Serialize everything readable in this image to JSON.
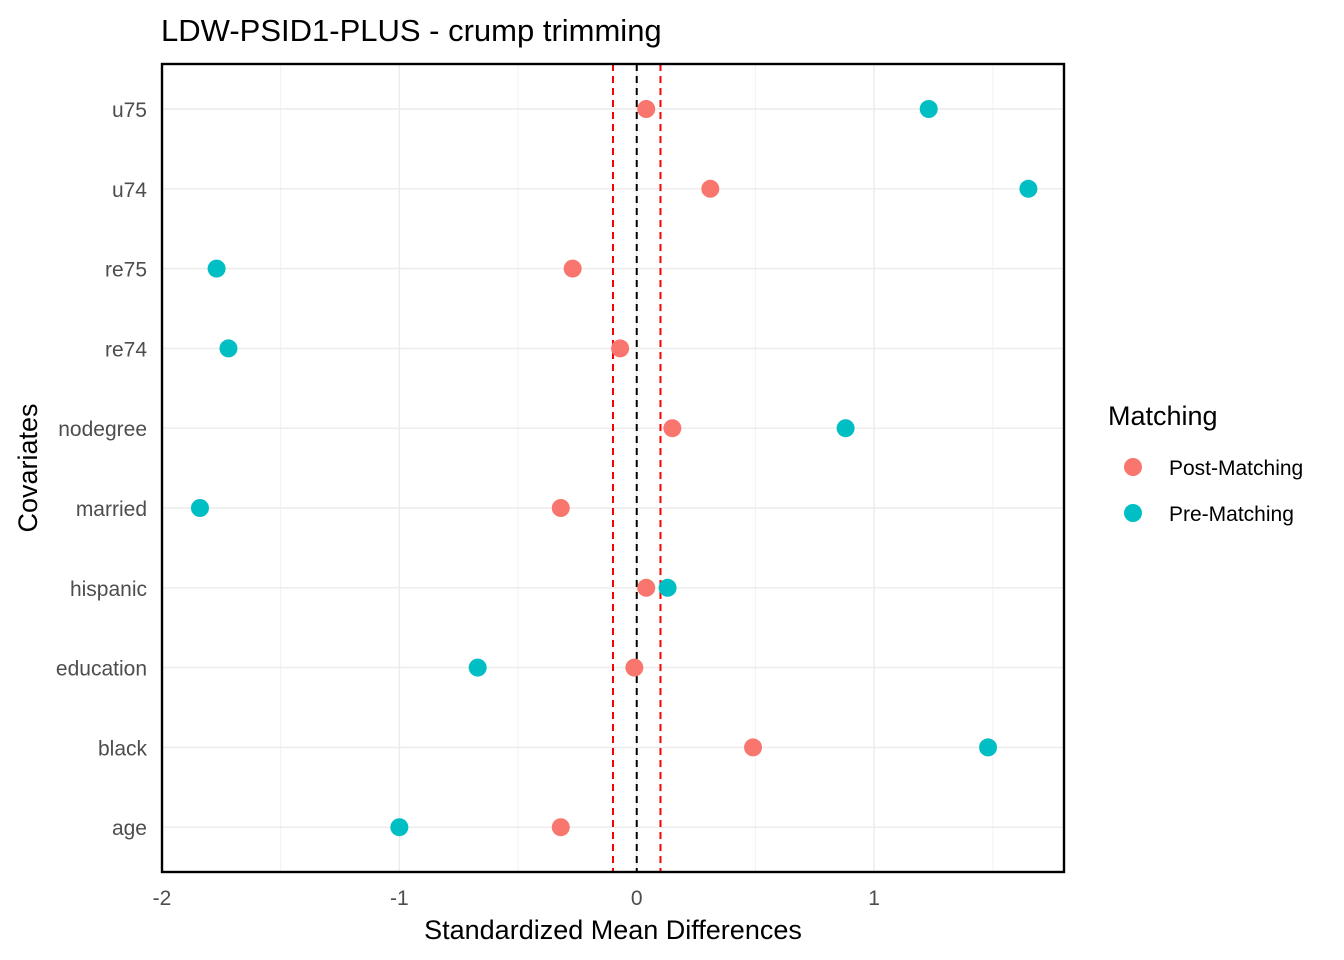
{
  "chart_data": {
    "type": "scatter",
    "title": "LDW-PSID1-PLUS - crump trimming",
    "xlabel": "Standardized Mean Differences",
    "ylabel": "Covariates",
    "xlim": [
      -2,
      1.8
    ],
    "x_ticks": [
      -2,
      -1,
      0,
      1
    ],
    "x_tick_labels": [
      "-2",
      "-1",
      "0",
      "1"
    ],
    "categories": [
      "u75",
      "u74",
      "re75",
      "re74",
      "nodegree",
      "married",
      "hispanic",
      "education",
      "black",
      "age"
    ],
    "series": [
      {
        "name": "Post-Matching",
        "color": "#F8766D",
        "values": [
          0.04,
          0.31,
          -0.27,
          -0.07,
          0.15,
          -0.32,
          0.04,
          -0.01,
          0.49,
          -0.32
        ]
      },
      {
        "name": "Pre-Matching",
        "color": "#00BFC4",
        "values": [
          1.23,
          1.65,
          -1.77,
          -1.72,
          0.88,
          -1.84,
          0.13,
          -0.67,
          1.48,
          -1.0
        ]
      }
    ],
    "reference_lines": [
      {
        "x": 0,
        "color": "#000000",
        "style": "dashed"
      },
      {
        "x": -0.1,
        "color": "#FF0000",
        "style": "dashed"
      },
      {
        "x": 0.1,
        "color": "#FF0000",
        "style": "dashed"
      }
    ],
    "grid": true,
    "legend_title": "Matching",
    "legend_placement": "right"
  }
}
